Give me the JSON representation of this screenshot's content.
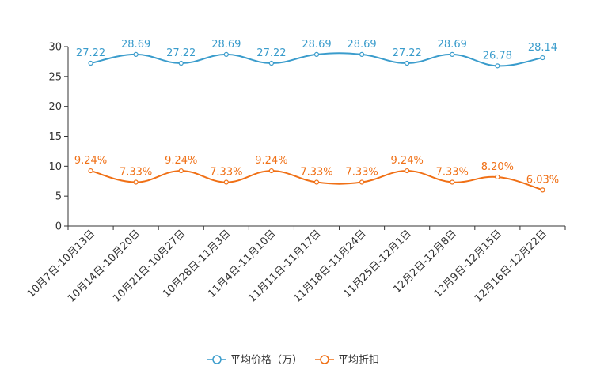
{
  "chart_data": {
    "type": "line",
    "title": "",
    "xlabel": "",
    "ylabel": "",
    "ylim": [
      0,
      30
    ],
    "yticks": [
      0,
      5,
      10,
      15,
      20,
      25,
      30
    ],
    "grid": false,
    "legend_position": "bottom-center",
    "categories": [
      "10月7日-10月13日",
      "10月14日-10月20日",
      "10月21日-10月27日",
      "10月28日-11月3日",
      "11月4日-11月10日",
      "11月11日-11月17日",
      "11月18日-11月24日",
      "11月25日-12月1日",
      "12月2日-12月8日",
      "12月9日-12月15日",
      "12月16日-12月22日"
    ],
    "series": [
      {
        "name": "平均价格（万）",
        "color": "#3a9ccc",
        "values": [
          27.22,
          28.69,
          27.22,
          28.69,
          27.22,
          28.69,
          28.69,
          27.22,
          28.69,
          26.78,
          28.14
        ],
        "labels": [
          "27.22",
          "28.69",
          "27.22",
          "28.69",
          "27.22",
          "28.69",
          "28.69",
          "27.22",
          "28.69",
          "26.78",
          "28.14"
        ]
      },
      {
        "name": "平均折扣",
        "color": "#f07016",
        "values": [
          9.24,
          7.33,
          9.24,
          7.33,
          9.24,
          7.33,
          7.33,
          9.24,
          7.33,
          8.2,
          6.03
        ],
        "labels": [
          "9.24%",
          "7.33%",
          "9.24%",
          "7.33%",
          "9.24%",
          "7.33%",
          "7.33%",
          "9.24%",
          "7.33%",
          "8.20%",
          "6.03%"
        ]
      }
    ]
  }
}
